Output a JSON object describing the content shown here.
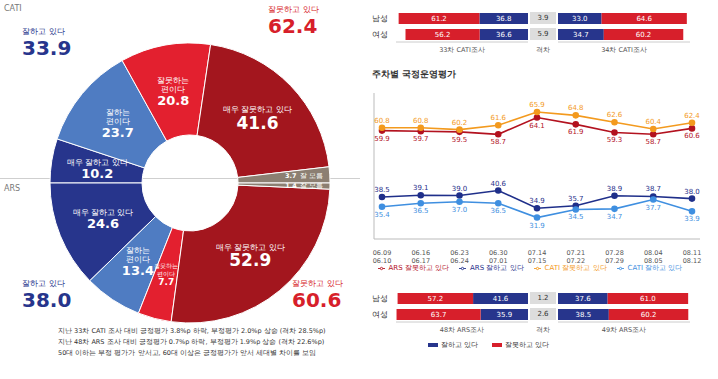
{
  "chart_data": [
    {
      "type": "pie",
      "title": "CATI",
      "categories": [
        "매우 잘하고 있다",
        "잘하는 편이다",
        "잘못하는 편이다",
        "매우 잘못하고 있다",
        "잘 모름"
      ],
      "values": [
        10.2,
        23.7,
        20.8,
        41.6,
        3.7
      ],
      "colors": [
        "#27358c",
        "#4f7cc2",
        "#e3202f",
        "#a3161e",
        "#8c7f72"
      ],
      "data_labels": true,
      "summary": [
        {
          "label": "잘하고 있다",
          "value": 33.9,
          "color": "#27358c"
        },
        {
          "label": "잘못하고 있다",
          "value": 62.4,
          "color": "#d71f2b"
        }
      ]
    },
    {
      "type": "pie",
      "title": "ARS",
      "categories": [
        "매우 잘하고 있다",
        "잘하는 편이다",
        "잘못하는 편이다",
        "매우 잘못하고 있다",
        "잘 모름"
      ],
      "values": [
        24.6,
        13.4,
        7.7,
        52.9,
        1.4
      ],
      "colors": [
        "#27358c",
        "#4f7cc2",
        "#e3202f",
        "#a3161e",
        "#8c7f72"
      ],
      "data_labels": true,
      "summary": [
        {
          "label": "잘하고 있다",
          "value": 38.0,
          "color": "#27358c"
        },
        {
          "label": "잘못하고 있다",
          "value": 60.6,
          "color": "#d71f2b"
        }
      ]
    },
    {
      "type": "line",
      "title": "주차별 국정운영평가",
      "categories": [
        "06.09\n06.10",
        "06.16\n06.17",
        "06.23\n06.24",
        "06.30\n07.01",
        "07.14\n07.15",
        "07.21\n07.22",
        "07.28\n07.29",
        "08.04\n08.05",
        "08.11\n08.12"
      ],
      "series": [
        {
          "name": "ARS 잘하고 있다",
          "color": "#1f2f8a",
          "values": [
            38.5,
            39.1,
            39.0,
            40.6,
            34.9,
            35.7,
            38.9,
            38.7,
            38.0
          ]
        },
        {
          "name": "ARS 잘못하고 있다",
          "color": "#b3121f",
          "values": [
            59.9,
            59.7,
            59.5,
            58.7,
            64.1,
            61.9,
            59.3,
            58.7,
            60.6
          ]
        },
        {
          "name": "CATI 잘하고 있다",
          "color": "#3f8fe0",
          "values": [
            35.4,
            36.5,
            37.0,
            36.5,
            31.9,
            34.5,
            34.7,
            37.7,
            33.9
          ]
        },
        {
          "name": "CATI 잘못하고 있다",
          "color": "#f39a1e",
          "values": [
            60.8,
            60.8,
            60.2,
            61.6,
            65.9,
            64.8,
            62.6,
            60.4,
            62.4
          ]
        }
      ],
      "ylim": [
        25,
        72
      ],
      "tick_labels": "x",
      "grid": false,
      "data_labels": true,
      "marker": "circle",
      "legend": "bottom"
    },
    {
      "type": "bar",
      "orientation": "horizontal",
      "stacked": true,
      "data_labels": true,
      "tick_labels": "y",
      "xlim": [
        0,
        100
      ],
      "categories": [
        "남성",
        "여성"
      ],
      "panels": [
        {
          "title": "33차 CATI조사",
          "series": [
            {
              "name": "잘하고 있다",
              "color": "#27358c",
              "values": [
                36.8,
                36.6
              ]
            },
            {
              "name": "잘못하고 있다",
              "color": "#d71f2b",
              "values": [
                61.2,
                56.2
              ]
            }
          ]
        },
        {
          "title": "34차 CATI조사",
          "series": [
            {
              "name": "잘하고 있다",
              "color": "#27358c",
              "values": [
                33.0,
                34.7
              ]
            },
            {
              "name": "잘못하고 있다",
              "color": "#d71f2b",
              "values": [
                64.6,
                60.2
              ]
            }
          ]
        }
      ],
      "gap": {
        "title": "격차",
        "values": [
          3.9,
          5.9
        ]
      }
    },
    {
      "type": "bar",
      "orientation": "horizontal",
      "stacked": true,
      "data_labels": true,
      "tick_labels": "y",
      "xlim": [
        0,
        100
      ],
      "categories": [
        "남성",
        "여성"
      ],
      "legend": "bottom",
      "panels": [
        {
          "title": "48차 ARS조사",
          "series": [
            {
              "name": "잘하고 있다",
              "color": "#27358c",
              "values": [
                41.6,
                35.9
              ]
            },
            {
              "name": "잘못하고 있다",
              "color": "#d71f2b",
              "values": [
                57.2,
                63.7
              ]
            }
          ]
        },
        {
          "title": "49차 ARS조사",
          "series": [
            {
              "name": "잘하고 있다",
              "color": "#27358c",
              "values": [
                37.6,
                38.5
              ]
            },
            {
              "name": "잘못하고 있다",
              "color": "#d71f2b",
              "values": [
                61.0,
                60.2
              ]
            }
          ]
        }
      ],
      "gap": {
        "title": "격차",
        "values": [
          1.2,
          2.6
        ]
      }
    }
  ],
  "notes": [
    "지난 33차 CATI 조사 대비 긍정평가 3.8%p 하락, 부정평가 2.0%p 상승 (격차 28.5%p)",
    "지난 48차 ARS 조사 대비 긍정평가 0.7%p 하락, 부정평가 1.9%p 상승 (격차 22.6%p)",
    "50대 이하는 부정 평가가 앞서고, 60대 이상은 긍정평가가 앞서 세대별 차이를 보임"
  ]
}
